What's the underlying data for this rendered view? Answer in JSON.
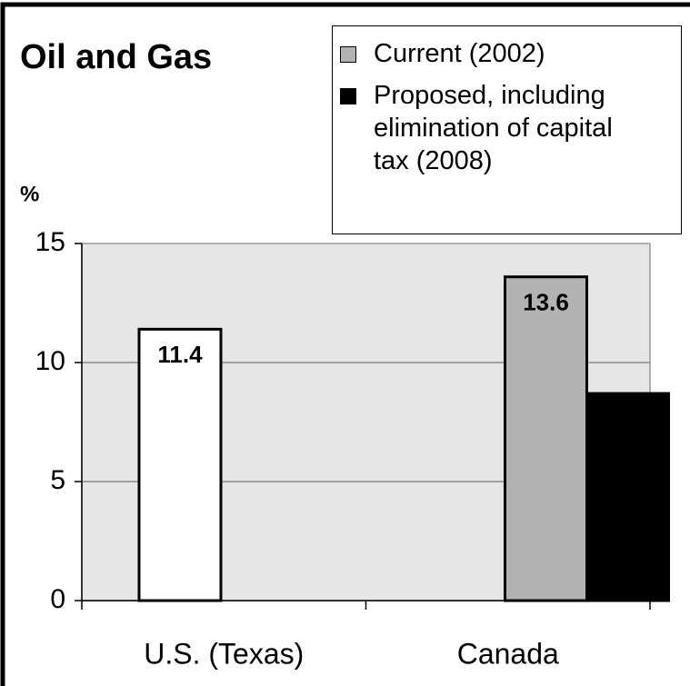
{
  "chart_data": {
    "type": "bar",
    "title": "Oil and Gas",
    "y_label": "%",
    "categories": [
      "U.S. (Texas)",
      "Canada"
    ],
    "series": [
      {
        "color": "#ffffff",
        "values": [
          11.4,
          null
        ]
      },
      {
        "name": "Current (2002)",
        "color": "#b3b3b3",
        "values": [
          null,
          13.6
        ]
      },
      {
        "name": "Proposed, including elimination of capital tax (2008)",
        "color": "#000000",
        "values": [
          null,
          8.7
        ]
      }
    ],
    "ylim": [
      0,
      15
    ],
    "yticks": [
      0,
      5,
      10,
      15
    ],
    "grid": true
  }
}
